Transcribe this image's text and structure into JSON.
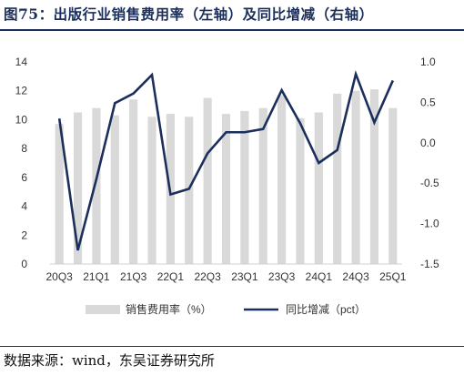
{
  "title": "图75：出版行业销售费用率（左轴）及同比增减（右轴）",
  "source": "数据来源：wind，东吴证券研究所",
  "chart_data": {
    "type": "bar+line",
    "x": [
      "20Q3",
      "20Q4",
      "21Q1",
      "21Q2",
      "21Q3",
      "21Q4",
      "22Q1",
      "22Q2",
      "22Q3",
      "22Q4",
      "23Q1",
      "23Q2",
      "23Q3",
      "23Q4",
      "24Q1",
      "24Q2",
      "24Q3",
      "24Q4",
      "25Q1"
    ],
    "x_tick_labels": [
      "20Q3",
      "21Q1",
      "21Q3",
      "22Q1",
      "22Q3",
      "23Q1",
      "23Q3",
      "24Q1",
      "24Q3",
      "25Q1"
    ],
    "series": [
      {
        "name": "销售费用率（%）",
        "type": "bar",
        "axis": "left",
        "color": "#d9d9d9",
        "values": [
          9.7,
          10.5,
          10.8,
          10.3,
          11.4,
          10.2,
          10.4,
          10.2,
          11.5,
          10.4,
          10.6,
          10.8,
          11.7,
          10.1,
          10.5,
          11.8,
          12.0,
          12.1,
          10.8
        ]
      },
      {
        "name": "同比增减（pct）",
        "type": "line",
        "axis": "right",
        "color": "#1b2f5c",
        "values": [
          0.3,
          -1.33,
          -0.45,
          0.49,
          0.61,
          0.84,
          -0.64,
          -0.57,
          -0.13,
          0.13,
          0.13,
          0.17,
          0.65,
          0.24,
          -0.25,
          -0.09,
          0.85,
          0.25,
          0.77
        ]
      }
    ],
    "yleft": {
      "min": 0,
      "max": 14,
      "ticks": [
        0,
        2,
        4,
        6,
        8,
        10,
        12,
        14
      ]
    },
    "yright": {
      "min": -1.5,
      "max": 1.0,
      "ticks": [
        -1.5,
        -1.0,
        -0.5,
        0.0,
        0.5,
        1.0
      ],
      "tick_labels": [
        "-1.5",
        "-1.0",
        "-0.5",
        "0.0",
        "0.5",
        "1.0"
      ]
    },
    "grid": false,
    "legend_position": "bottom"
  }
}
